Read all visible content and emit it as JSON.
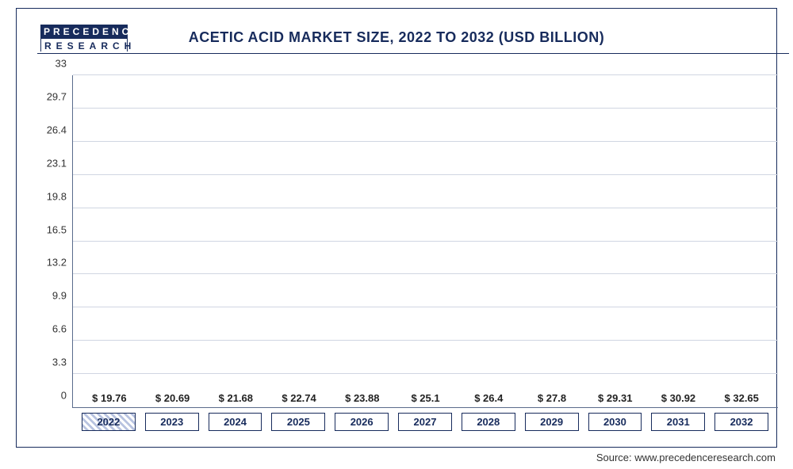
{
  "logo": {
    "top": "PRECEDENCE",
    "bottom": "RESEARCH"
  },
  "title": "ACETIC ACID MARKET SIZE, 2022 TO 2032 (USD BILLION)",
  "source_label": "Source: www.precedenceresearch.com",
  "chart": {
    "type": "bar",
    "ylim": [
      0,
      33
    ],
    "ytick_step": 3.3,
    "yticks": [
      0,
      3.3,
      6.6,
      9.9,
      13.2,
      16.5,
      19.8,
      23.1,
      26.4,
      29.7,
      33
    ],
    "grid_color": "#d0d6e2",
    "axis_color": "#5a6b8c",
    "background_color": "#ffffff",
    "value_prefix": "$ ",
    "title_fontsize": 18,
    "label_fontsize": 13,
    "value_fontsize": 13,
    "bar_width": 0.78,
    "categories": [
      "2022",
      "2023",
      "2024",
      "2025",
      "2026",
      "2027",
      "2028",
      "2029",
      "2030",
      "2031",
      "2032"
    ],
    "values": [
      19.76,
      20.69,
      21.68,
      22.74,
      23.88,
      25.1,
      26.4,
      27.8,
      29.31,
      30.92,
      32.65
    ],
    "value_labels": [
      "19.76",
      "20.69",
      "21.68",
      "22.74",
      "23.88",
      "25.1",
      "26.4",
      "27.8",
      "29.31",
      "30.92",
      "32.65"
    ],
    "bar_colors": [
      "#b1bfe0",
      "#5f6f9c",
      "#4a5c92",
      "#3f5391",
      "#34487f",
      "#2b3f74",
      "#1f3566",
      "#192e5d",
      "#162a57",
      "#132550",
      "#132550"
    ],
    "current_category_index": 0,
    "title_color": "#172b5c",
    "xlabel_border_color": "#172b5c"
  }
}
